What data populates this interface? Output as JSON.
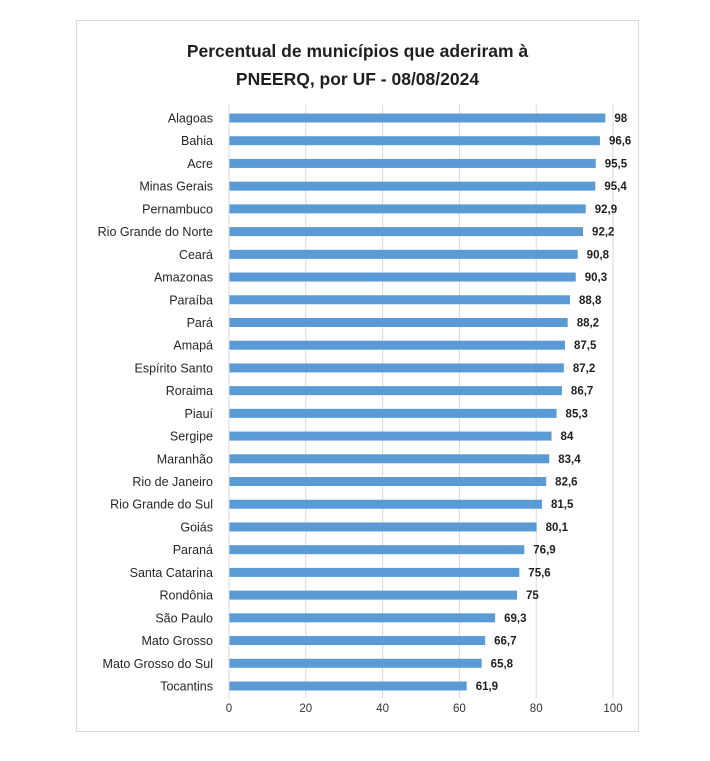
{
  "chart_data": {
    "type": "bar",
    "orientation": "horizontal",
    "title_line1": "Percentual de municípios que aderiram à",
    "title_line2": "PNEERQ, por UF - 08/08/2024",
    "xlabel": "",
    "ylabel": "",
    "xlim": [
      0,
      100
    ],
    "x_ticks": [
      "0",
      "20",
      "40",
      "60",
      "80",
      "100"
    ],
    "gridlines": "vertical",
    "bar_color": "#5b9bd5",
    "categories": [
      "Alagoas",
      "Bahia",
      "Acre",
      "Minas Gerais",
      "Pernambuco",
      "Rio Grande do Norte",
      "Ceará",
      "Amazonas",
      "Paraíba",
      "Pará",
      "Amapá",
      "Espírito Santo",
      "Roraima",
      "Piauí",
      "Sergipe",
      "Maranhão",
      "Rio de Janeiro",
      "Rio Grande do Sul",
      "Goiás",
      "Paraná",
      "Santa Catarina",
      "Rondônia",
      "São Paulo",
      "Mato Grosso",
      "Mato Grosso do Sul",
      "Tocantins"
    ],
    "values": [
      98,
      96.6,
      95.5,
      95.4,
      92.9,
      92.2,
      90.8,
      90.3,
      88.8,
      88.2,
      87.5,
      87.2,
      86.7,
      85.3,
      84,
      83.4,
      82.6,
      81.5,
      80.1,
      76.9,
      75.6,
      75,
      69.3,
      66.7,
      65.8,
      61.9
    ],
    "value_labels": [
      "98",
      "96,6",
      "95,5",
      "95,4",
      "92,9",
      "92,2",
      "90,8",
      "90,3",
      "88,8",
      "88,2",
      "87,5",
      "87,2",
      "86,7",
      "85,3",
      "84",
      "83,4",
      "82,6",
      "81,5",
      "80,1",
      "76,9",
      "75,6",
      "75",
      "69,3",
      "66,7",
      "65,8",
      "61,9"
    ]
  }
}
